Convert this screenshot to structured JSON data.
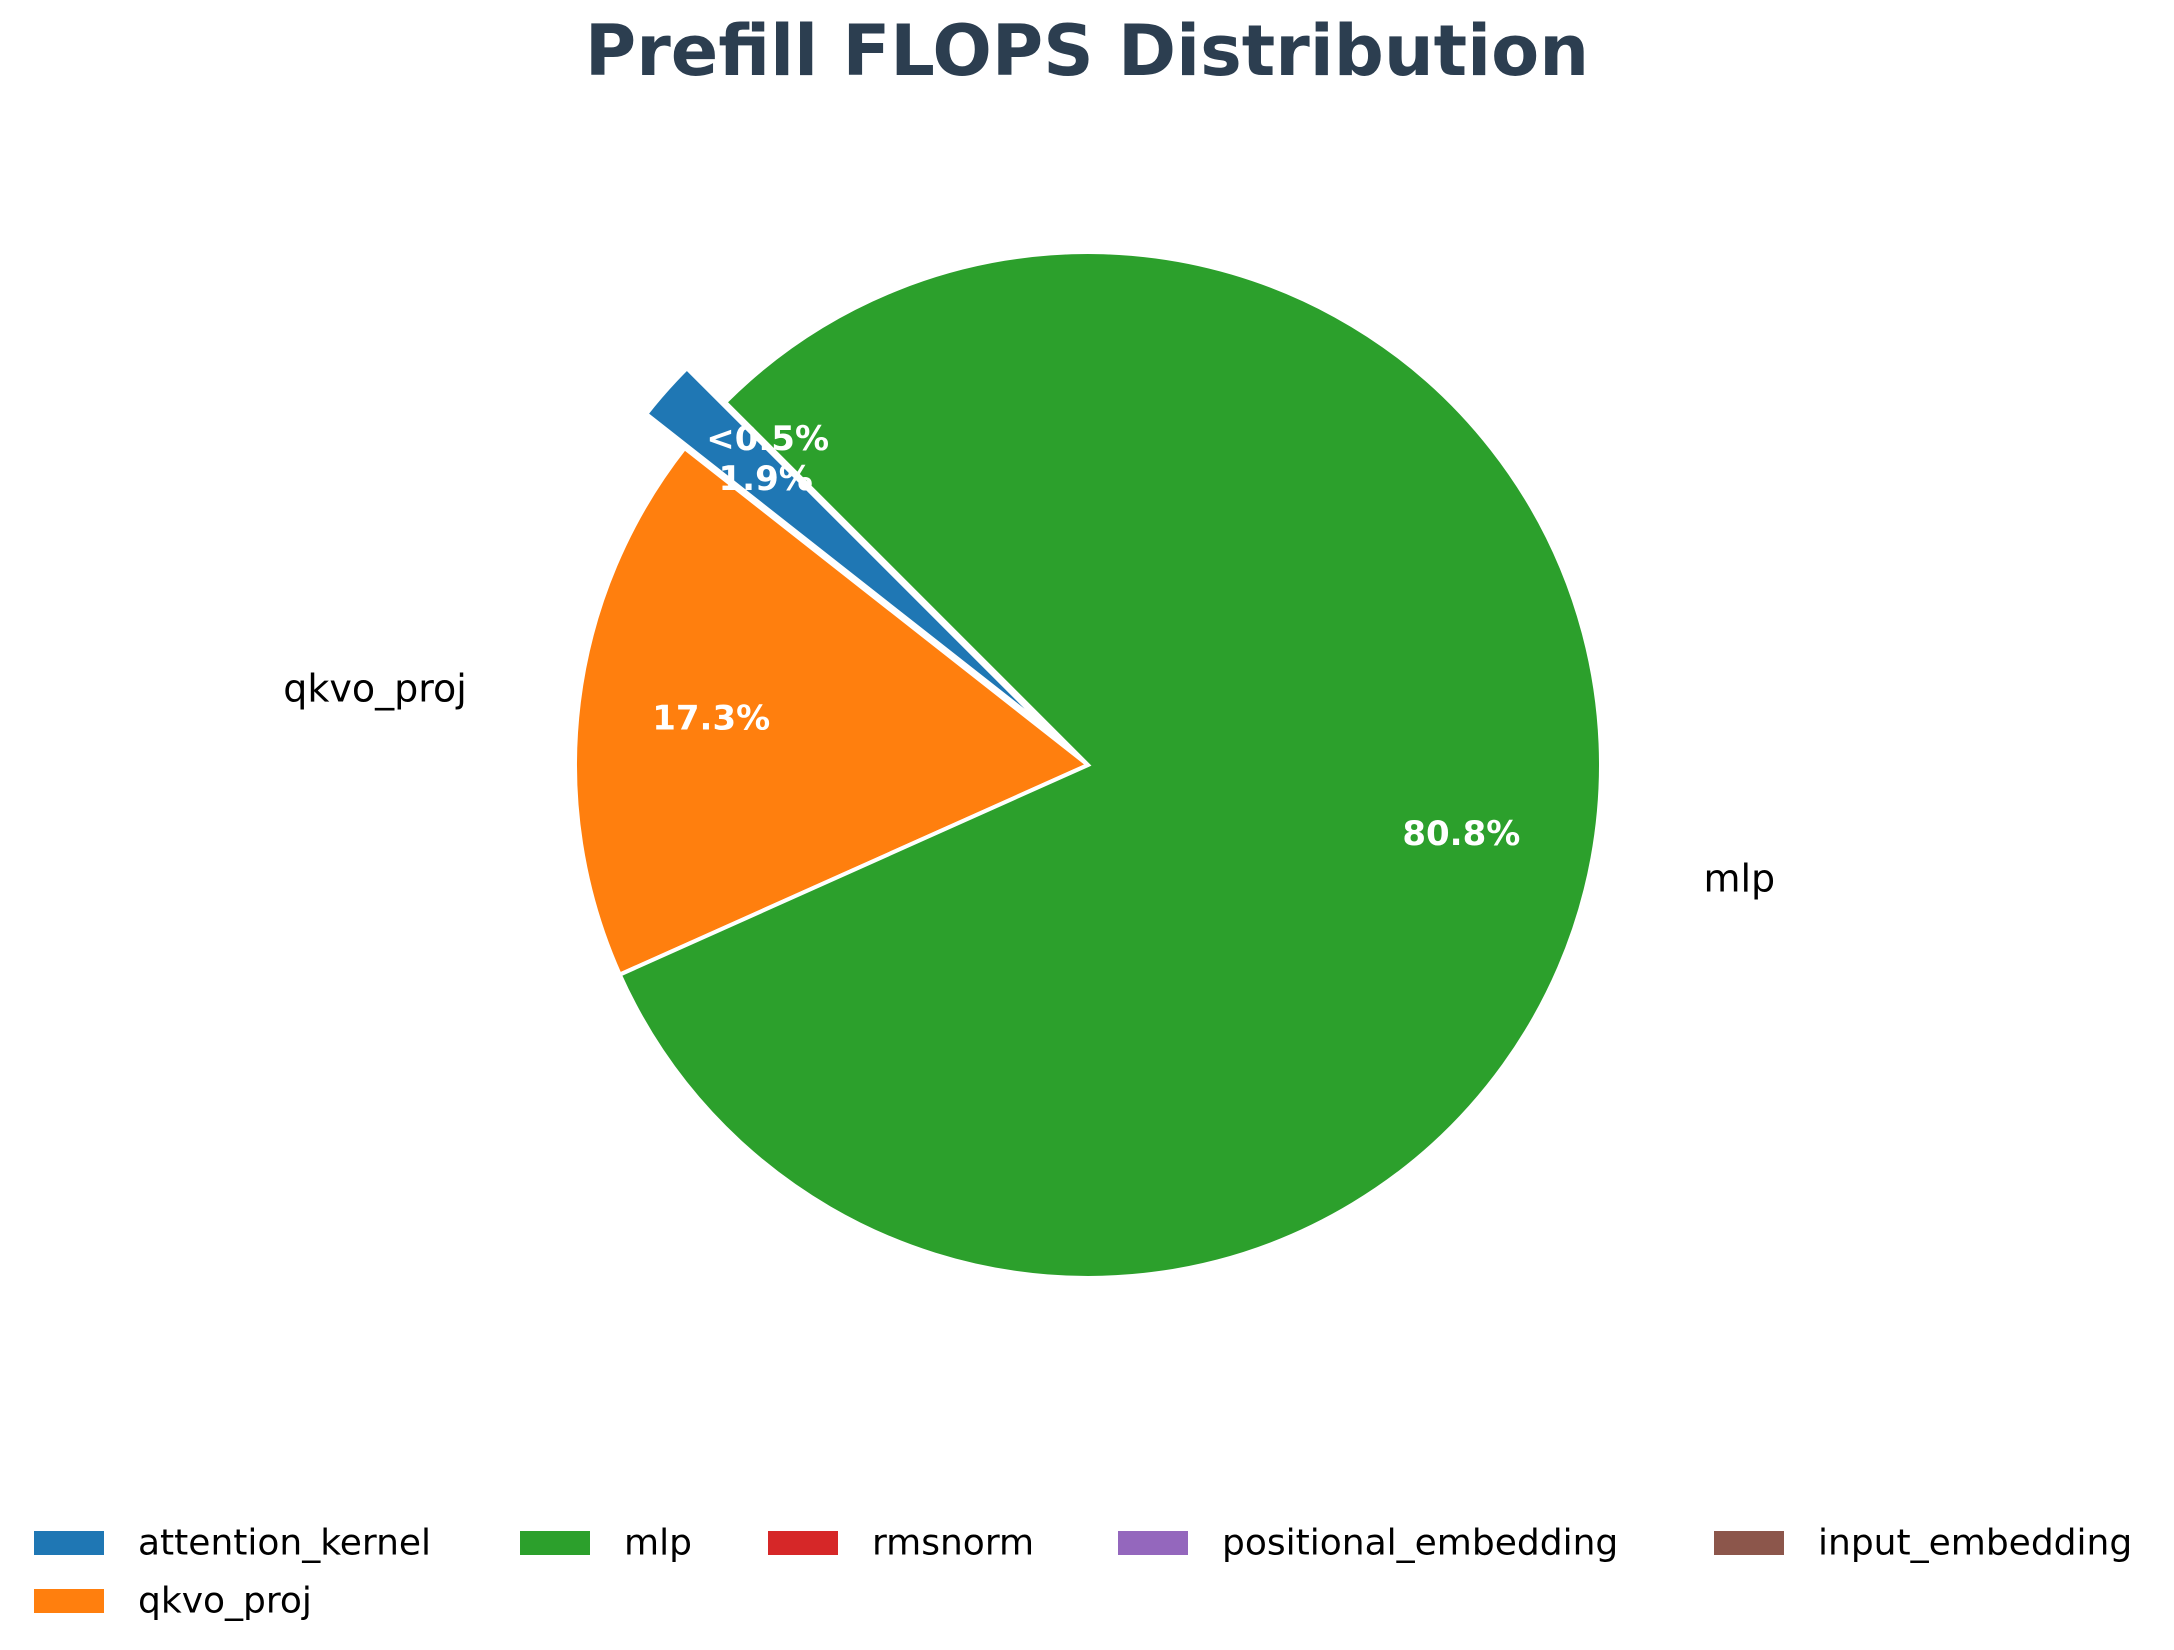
{
  "chart_data": {
    "type": "pie",
    "title": "Prefill FLOPS Distribution",
    "slices": [
      {
        "name": "attention_kernel",
        "value": 1.9,
        "color": "#1f77b4",
        "pct_label": "1.9%",
        "outer_label": "",
        "exploded": true
      },
      {
        "name": "qkvo_proj",
        "value": 17.3,
        "color": "#ff7f0e",
        "pct_label": "17.3%",
        "outer_label": "qkvo_proj",
        "exploded": false
      },
      {
        "name": "mlp",
        "value": 80.8,
        "color": "#2ca02c",
        "pct_label": "80.8%",
        "outer_label": "mlp",
        "exploded": false
      },
      {
        "name": "rmsnorm",
        "value": 0,
        "color": "#d62728",
        "pct_label": "",
        "outer_label": "",
        "exploded": false
      },
      {
        "name": "positional_embedding",
        "value": 0,
        "color": "#9467bd",
        "pct_label": "",
        "outer_label": "",
        "exploded": false
      },
      {
        "name": "input_embedding",
        "value": 0,
        "color": "#8c564b",
        "pct_label": "",
        "outer_label": "",
        "exploded": false
      }
    ],
    "small_note": "<0.5%",
    "legend": [
      "attention_kernel",
      "mlp",
      "rmsnorm",
      "positional_embedding",
      "input_embedding",
      "qkvo_proj"
    ],
    "legend_placement": "bottom",
    "start_angle_deg": 135,
    "direction": "counterclockwise"
  }
}
